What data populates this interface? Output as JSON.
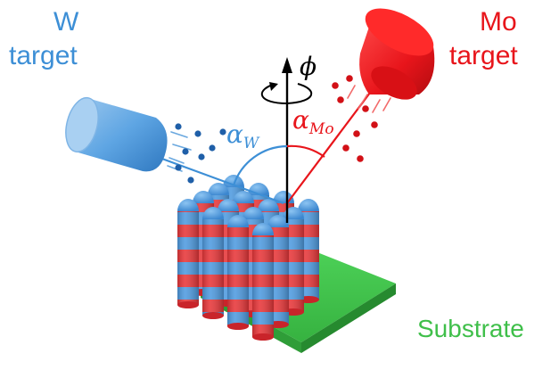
{
  "labels": {
    "w_target_line1": "W",
    "w_target_line2": "target",
    "mo_target_line1": "Mo",
    "mo_target_line2": "target",
    "substrate": "Substrate",
    "phi": "ϕ",
    "alpha_w_symbol": "α",
    "alpha_w_sub": "W",
    "alpha_mo_symbol": "α",
    "alpha_mo_sub": "Mo"
  },
  "colors": {
    "w": "#3d8fd6",
    "mo": "#e8151b",
    "substrate": "#3fbf4a",
    "axis": "#000000"
  }
}
